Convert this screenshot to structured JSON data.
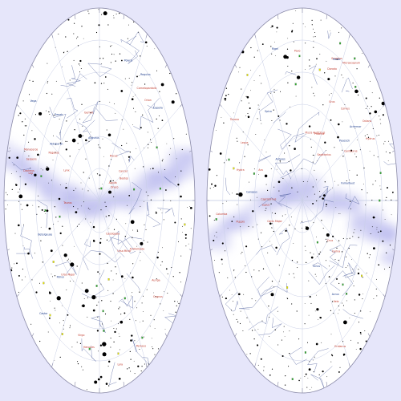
{
  "colors": {
    "background": "#e6e6fa",
    "hemisphere_fill": "#ffffff",
    "outline": "#8a8aa8",
    "grid": "#c9cfe6",
    "constellation_line": "#4a5a9a",
    "milky_way": "#b9b9ee",
    "star": "#000000",
    "label_red": "#c0392b",
    "label_blue": "#1a3a8a",
    "dso_yellow": "#e6e600",
    "dso_green": "#2eaa2e"
  },
  "hemispheres": [
    {
      "name": "north",
      "constellation_labels": [
        "Ursa Minor",
        "Draco",
        "Cepheus",
        "Cassiopeia",
        "Camelopardalis",
        "Ursa Major",
        "Lynx",
        "Auriga",
        "Perseus",
        "Andromeda",
        "Cygnus",
        "Lyra",
        "Hercules",
        "Bootes",
        "Leo",
        "Gemini",
        "Taurus",
        "Pegasus",
        "Virgo",
        "Serpens",
        "Orion",
        "Monoceros",
        "Aquila",
        "Pisces",
        "Cancer"
      ],
      "star_labels": [
        "Polaris",
        "Vega",
        "Deneb",
        "Capella",
        "Arcturus",
        "Aldebaran",
        "Betelgeuse",
        "Regulus",
        "Castor",
        "Pollux"
      ]
    },
    {
      "name": "south",
      "constellation_labels": [
        "Carina",
        "Centaurus",
        "Crux",
        "Octans",
        "Pavo",
        "Tucana",
        "Hydrus",
        "Dorado",
        "Vela",
        "Puppis",
        "Scorpius",
        "Sagittarius",
        "Lupus",
        "Ara",
        "Grus",
        "Phoenix",
        "Eridanus",
        "Columba",
        "Lepus",
        "Canis Major",
        "Hydra",
        "Corvus",
        "Microscopium",
        "Piscis Austrinus",
        "Capricornus"
      ],
      "star_labels": [
        "Canopus",
        "Achernar",
        "Rigel",
        "Sirius",
        "Antares",
        "Fomalhaut",
        "Spica",
        "Hadar",
        "Acrux",
        "Peacock"
      ]
    }
  ]
}
